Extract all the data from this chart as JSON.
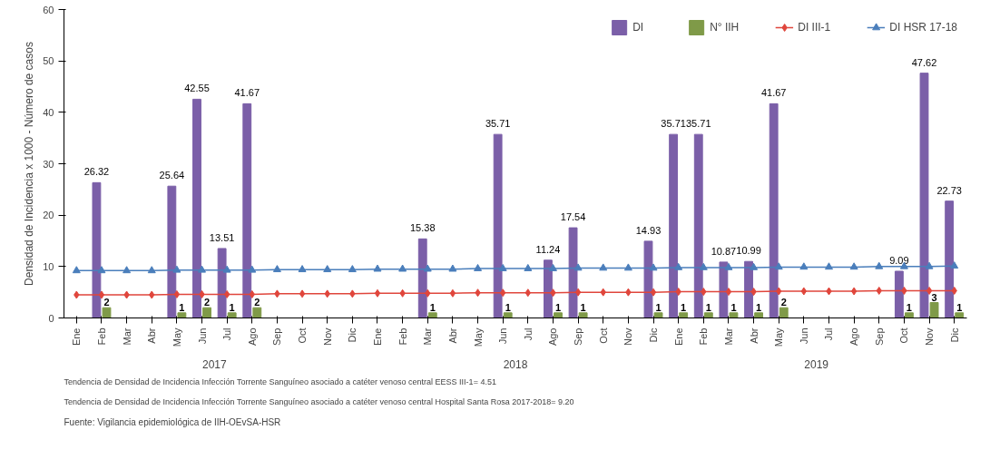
{
  "chart_data": {
    "type": "bar",
    "ylabel": "Densidad de Incidencia x 1000 - Número de casos",
    "categories": [
      "Ene",
      "Feb",
      "Mar",
      "Abr",
      "May",
      "Jun",
      "Jul",
      "Ago",
      "Sep",
      "Oct",
      "Nov",
      "Dic",
      "Ene",
      "Feb",
      "Mar",
      "Abr",
      "May",
      "Jun",
      "Jul",
      "Ago",
      "Sep",
      "Oct",
      "Nov",
      "Dic",
      "Ene",
      "Feb",
      "Mar",
      "Abr",
      "May",
      "Jun",
      "Jul",
      "Ago",
      "Sep",
      "Oct",
      "Nov",
      "Dic"
    ],
    "series": [
      {
        "name": "DI",
        "color": "#7b5fa8",
        "values": [
          0,
          26.32,
          0,
          0,
          25.64,
          42.55,
          13.51,
          41.67,
          0,
          0,
          0,
          0,
          0,
          0,
          15.38,
          0,
          0,
          35.71,
          0,
          11.24,
          17.54,
          0,
          0,
          14.93,
          35.71,
          35.71,
          10.87,
          10.99,
          41.67,
          0,
          0,
          0,
          0,
          9.09,
          47.62,
          22.73
        ],
        "value_labels": [
          null,
          "26.32",
          null,
          null,
          "25.64",
          "42.55",
          "13.51",
          "41.67",
          null,
          null,
          null,
          null,
          null,
          null,
          "15.38",
          null,
          null,
          "35.71",
          null,
          "11.24",
          "17.54",
          null,
          null,
          "14.93",
          "35.71",
          "35.71",
          "10.87",
          "10.99",
          "41.67",
          null,
          null,
          null,
          null,
          "9.09",
          "47.62",
          "22.73"
        ]
      },
      {
        "name": "N° IIH",
        "color": "#7f9a48",
        "values": [
          0,
          2,
          0,
          0,
          1,
          2,
          1,
          2,
          0,
          0,
          0,
          0,
          0,
          0,
          1,
          0,
          0,
          1,
          0,
          1,
          1,
          0,
          0,
          1,
          1,
          1,
          1,
          1,
          2,
          0,
          0,
          0,
          0,
          1,
          3,
          1
        ],
        "value_labels": [
          null,
          "2",
          null,
          null,
          "1",
          "2",
          "1",
          "2",
          null,
          null,
          null,
          null,
          null,
          null,
          "1",
          null,
          null,
          "1",
          null,
          "1",
          "1",
          null,
          null,
          "1",
          "1",
          "1",
          "1",
          "1",
          "2",
          null,
          null,
          null,
          null,
          "1",
          "3",
          "1"
        ]
      },
      {
        "name": "DI III-1",
        "type": "line",
        "marker": "diamond",
        "color": "#e0463c",
        "values": [
          4.5,
          4.5,
          4.5,
          4.5,
          4.6,
          4.6,
          4.6,
          4.6,
          4.7,
          4.7,
          4.7,
          4.7,
          4.8,
          4.8,
          4.8,
          4.8,
          4.9,
          4.9,
          4.9,
          4.9,
          5.0,
          5.0,
          5.0,
          5.0,
          5.1,
          5.1,
          5.1,
          5.1,
          5.2,
          5.2,
          5.2,
          5.2,
          5.3,
          5.3,
          5.3,
          5.3
        ]
      },
      {
        "name": "DI HSR 17-18",
        "type": "line",
        "marker": "triangle",
        "color": "#4a7ebb",
        "values": [
          9.2,
          9.2,
          9.2,
          9.2,
          9.3,
          9.3,
          9.3,
          9.3,
          9.4,
          9.4,
          9.4,
          9.4,
          9.5,
          9.5,
          9.5,
          9.5,
          9.6,
          9.6,
          9.6,
          9.6,
          9.7,
          9.7,
          9.7,
          9.7,
          9.8,
          9.8,
          9.8,
          9.8,
          9.9,
          9.9,
          9.9,
          9.9,
          10.0,
          10.0,
          10.0,
          10.1
        ]
      }
    ],
    "ylim": [
      0,
      60
    ],
    "yticks": [
      0,
      10,
      20,
      30,
      40,
      50,
      60
    ],
    "grid": false,
    "legend": "top right",
    "annotations": [
      "2017",
      "2018",
      "2019",
      "Tendencia de Densidad de Incidencia Infección Torrente Sanguíneo asociado a catéter venoso central EESS III-1= 4.51",
      "Tendencia de Densidad de Incidencia Infección Torrente Sanguíneo asociado a catéter venoso central Hospital Santa Rosa 2017-2018= 9.20",
      "Fuente: Vigilancia epidemiológica de IIH-OEvSA-HSR"
    ]
  }
}
